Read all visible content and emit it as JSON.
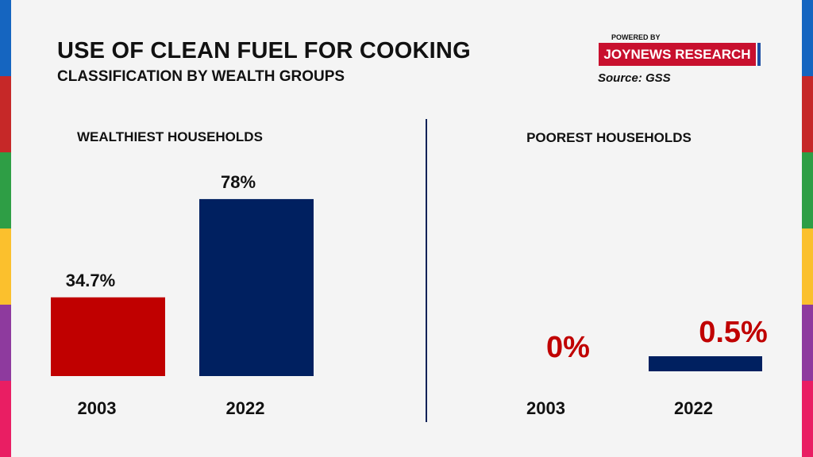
{
  "title": "USE OF CLEAN FUEL FOR COOKING",
  "subtitle": "CLASSIFICATION BY WEALTH GROUPS",
  "branding": {
    "powered_by": "POWERED BY",
    "name": "JOYNEWS RESEARCH",
    "source": "Source: GSS"
  },
  "colors": {
    "y2003": "#c00000",
    "y2022": "#002060",
    "edge_stripes": [
      "#1565c0",
      "#c62828",
      "#2e9e45",
      "#fbc02d",
      "#8e3a9e",
      "#e91e63"
    ]
  },
  "chart_data": [
    {
      "type": "bar",
      "title": "WEALTHIEST HOUSEHOLDS",
      "categories": [
        "2003",
        "2022"
      ],
      "values": [
        34.7,
        78
      ],
      "value_labels": [
        "34.7%",
        "78%"
      ],
      "ylim": [
        0,
        100
      ],
      "grid": false
    },
    {
      "type": "bar",
      "title": "POOREST HOUSEHOLDS",
      "categories": [
        "2003",
        "2022"
      ],
      "values": [
        0,
        0.5
      ],
      "value_labels": [
        "0%",
        "0.5%"
      ],
      "ylim": [
        0,
        100
      ],
      "grid": false
    }
  ]
}
